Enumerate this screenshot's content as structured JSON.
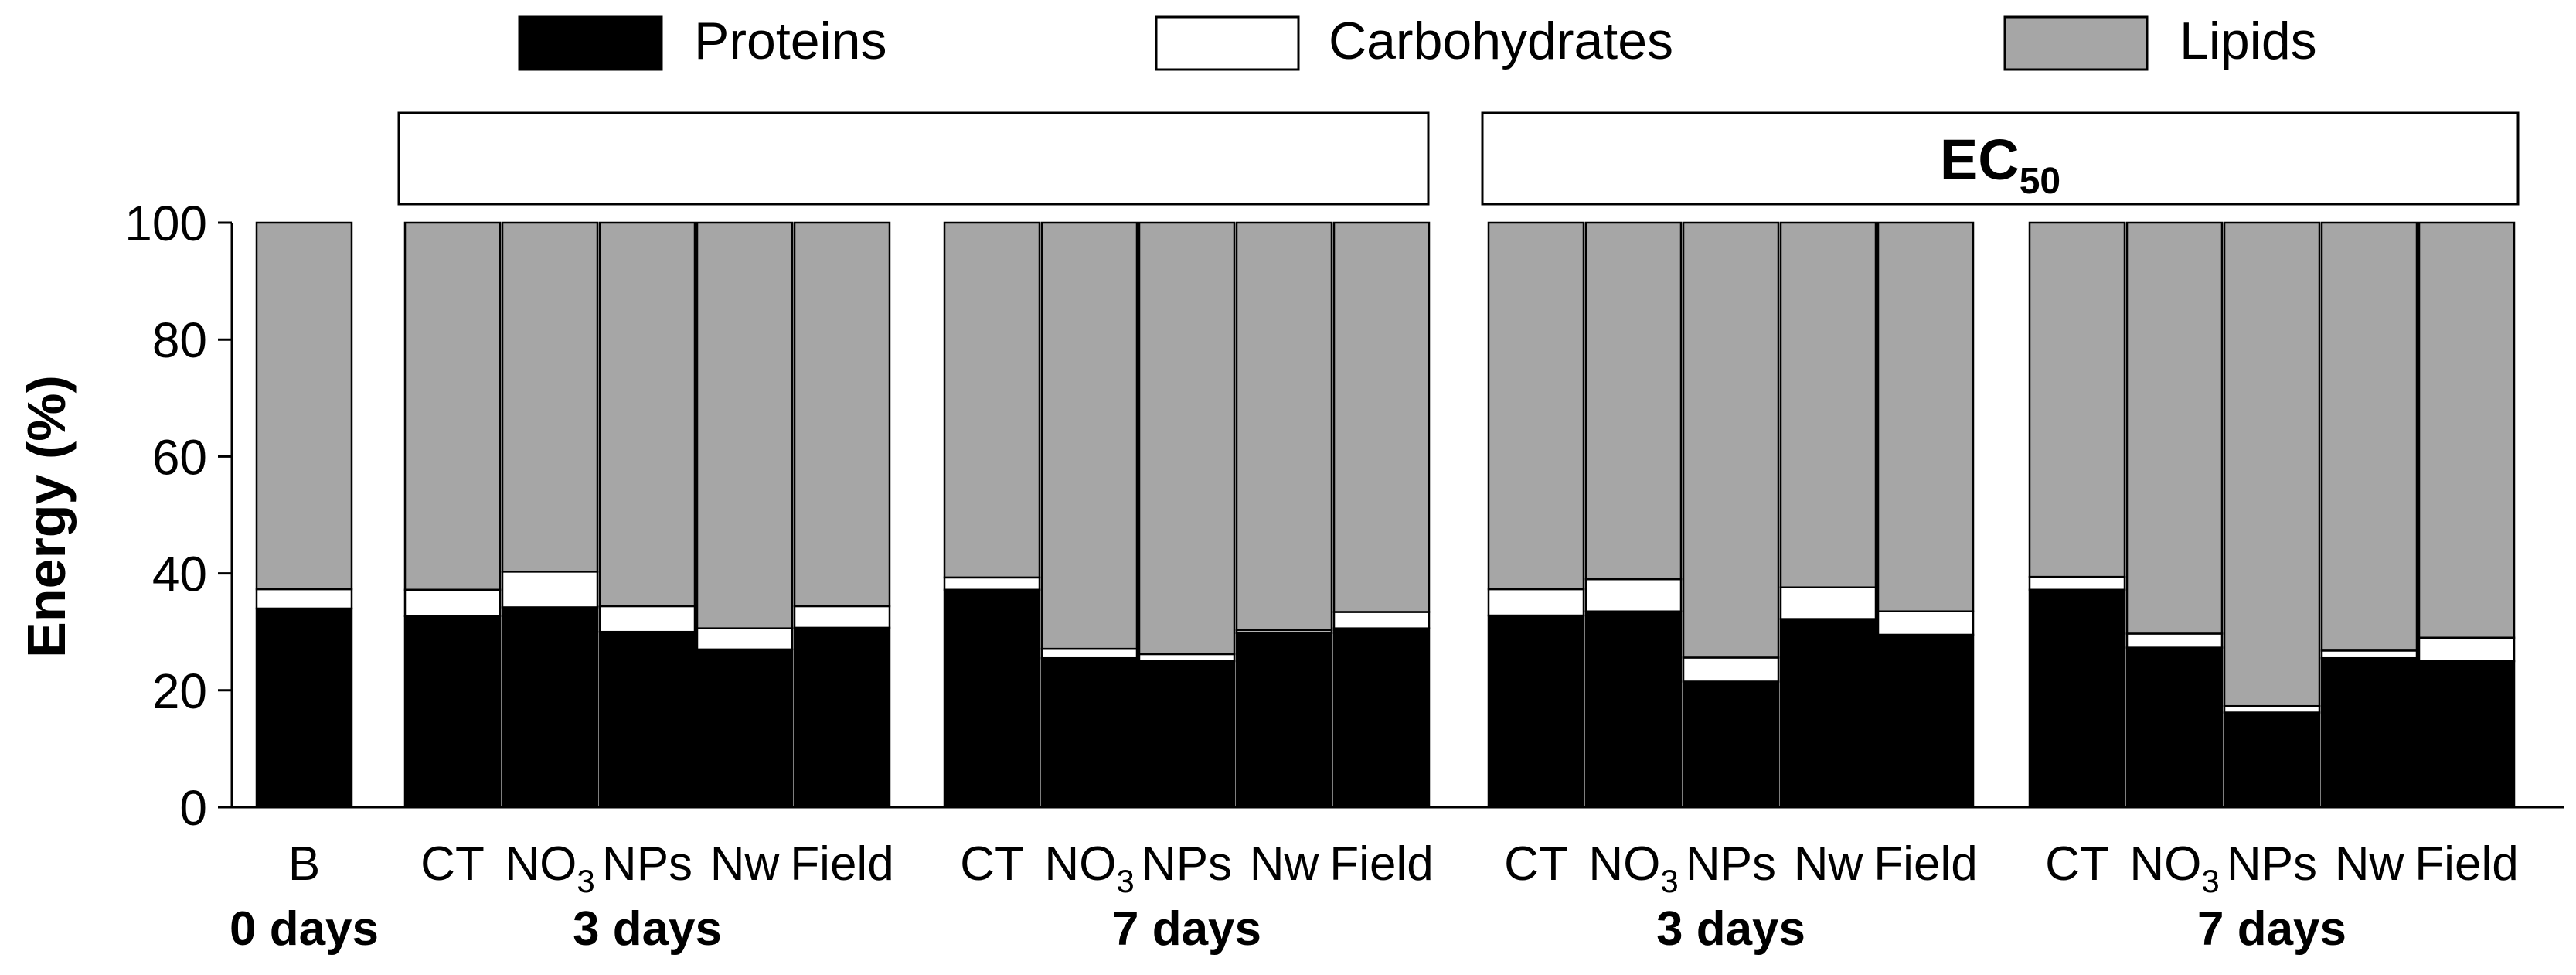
{
  "colors": {
    "proteins": "#000000",
    "carbohydrates": "#ffffff",
    "lipids": "#a6a6a6",
    "stroke": "#000000"
  },
  "chart_data": {
    "type": "bar",
    "stacked": true,
    "ylabel": "Energy (%)",
    "ylim": [
      0,
      100
    ],
    "yticks": [
      0,
      20,
      40,
      60,
      80,
      100
    ],
    "ytick_labels": [
      "0",
      "20",
      "40",
      "60",
      "80",
      "100"
    ],
    "legend": {
      "placement": "top",
      "entries": [
        "Proteins",
        "Carbohydrates",
        "Lipids"
      ]
    },
    "panel_headers": [
      {
        "main": "",
        "sub": ""
      },
      {
        "main": "EC",
        "sub": "50"
      }
    ],
    "categories": [
      "B",
      "CT",
      "NO3",
      "NPs",
      "Nw",
      "Field",
      "CT",
      "NO3",
      "NPs",
      "Nw",
      "Field",
      "CT",
      "NO3",
      "NPs",
      "Nw",
      "Field",
      "CT",
      "NO3",
      "NPs",
      "Nw",
      "Field"
    ],
    "category_labels": [
      {
        "main": "B",
        "sub": ""
      },
      {
        "main": "CT",
        "sub": ""
      },
      {
        "main": "NO",
        "sub": "3"
      },
      {
        "main": "NPs",
        "sub": ""
      },
      {
        "main": "Nw",
        "sub": ""
      },
      {
        "main": "Field",
        "sub": ""
      },
      {
        "main": "CT",
        "sub": ""
      },
      {
        "main": "NO",
        "sub": "3"
      },
      {
        "main": "NPs",
        "sub": ""
      },
      {
        "main": "Nw",
        "sub": ""
      },
      {
        "main": "Field",
        "sub": ""
      },
      {
        "main": "CT",
        "sub": ""
      },
      {
        "main": "NO",
        "sub": "3"
      },
      {
        "main": "NPs",
        "sub": ""
      },
      {
        "main": "Nw",
        "sub": ""
      },
      {
        "main": "Field",
        "sub": ""
      },
      {
        "main": "CT",
        "sub": ""
      },
      {
        "main": "NO",
        "sub": "3"
      },
      {
        "main": "NPs",
        "sub": ""
      },
      {
        "main": "Nw",
        "sub": ""
      },
      {
        "main": "Field",
        "sub": ""
      }
    ],
    "group_labels": [
      "0 days",
      "3 days",
      "7 days",
      "3 days",
      "7 days"
    ],
    "series": [
      {
        "name": "Proteins",
        "values": [
          34,
          32.7,
          34.2,
          30,
          27,
          30.7,
          37.2,
          25.5,
          25,
          29.8,
          30.6,
          32.8,
          33.5,
          21.5,
          32.2,
          29.5,
          37.2,
          27.3,
          16.2,
          25.5,
          25
        ]
      },
      {
        "name": "Carbohydrates",
        "values": [
          3.3,
          4.5,
          6.1,
          4.4,
          3.6,
          3.7,
          2.1,
          1.6,
          1.2,
          0.5,
          2.8,
          4.5,
          5.5,
          4.1,
          5.4,
          4.0,
          2.2,
          2.4,
          1.1,
          1.3,
          4.0
        ]
      },
      {
        "name": "Lipids",
        "values": [
          62.7,
          62.8,
          59.7,
          65.6,
          69.4,
          65.6,
          60.7,
          72.9,
          73.8,
          69.7,
          66.6,
          62.7,
          61.0,
          74.4,
          62.4,
          66.5,
          60.6,
          70.3,
          82.7,
          73.2,
          71.0
        ]
      }
    ]
  }
}
